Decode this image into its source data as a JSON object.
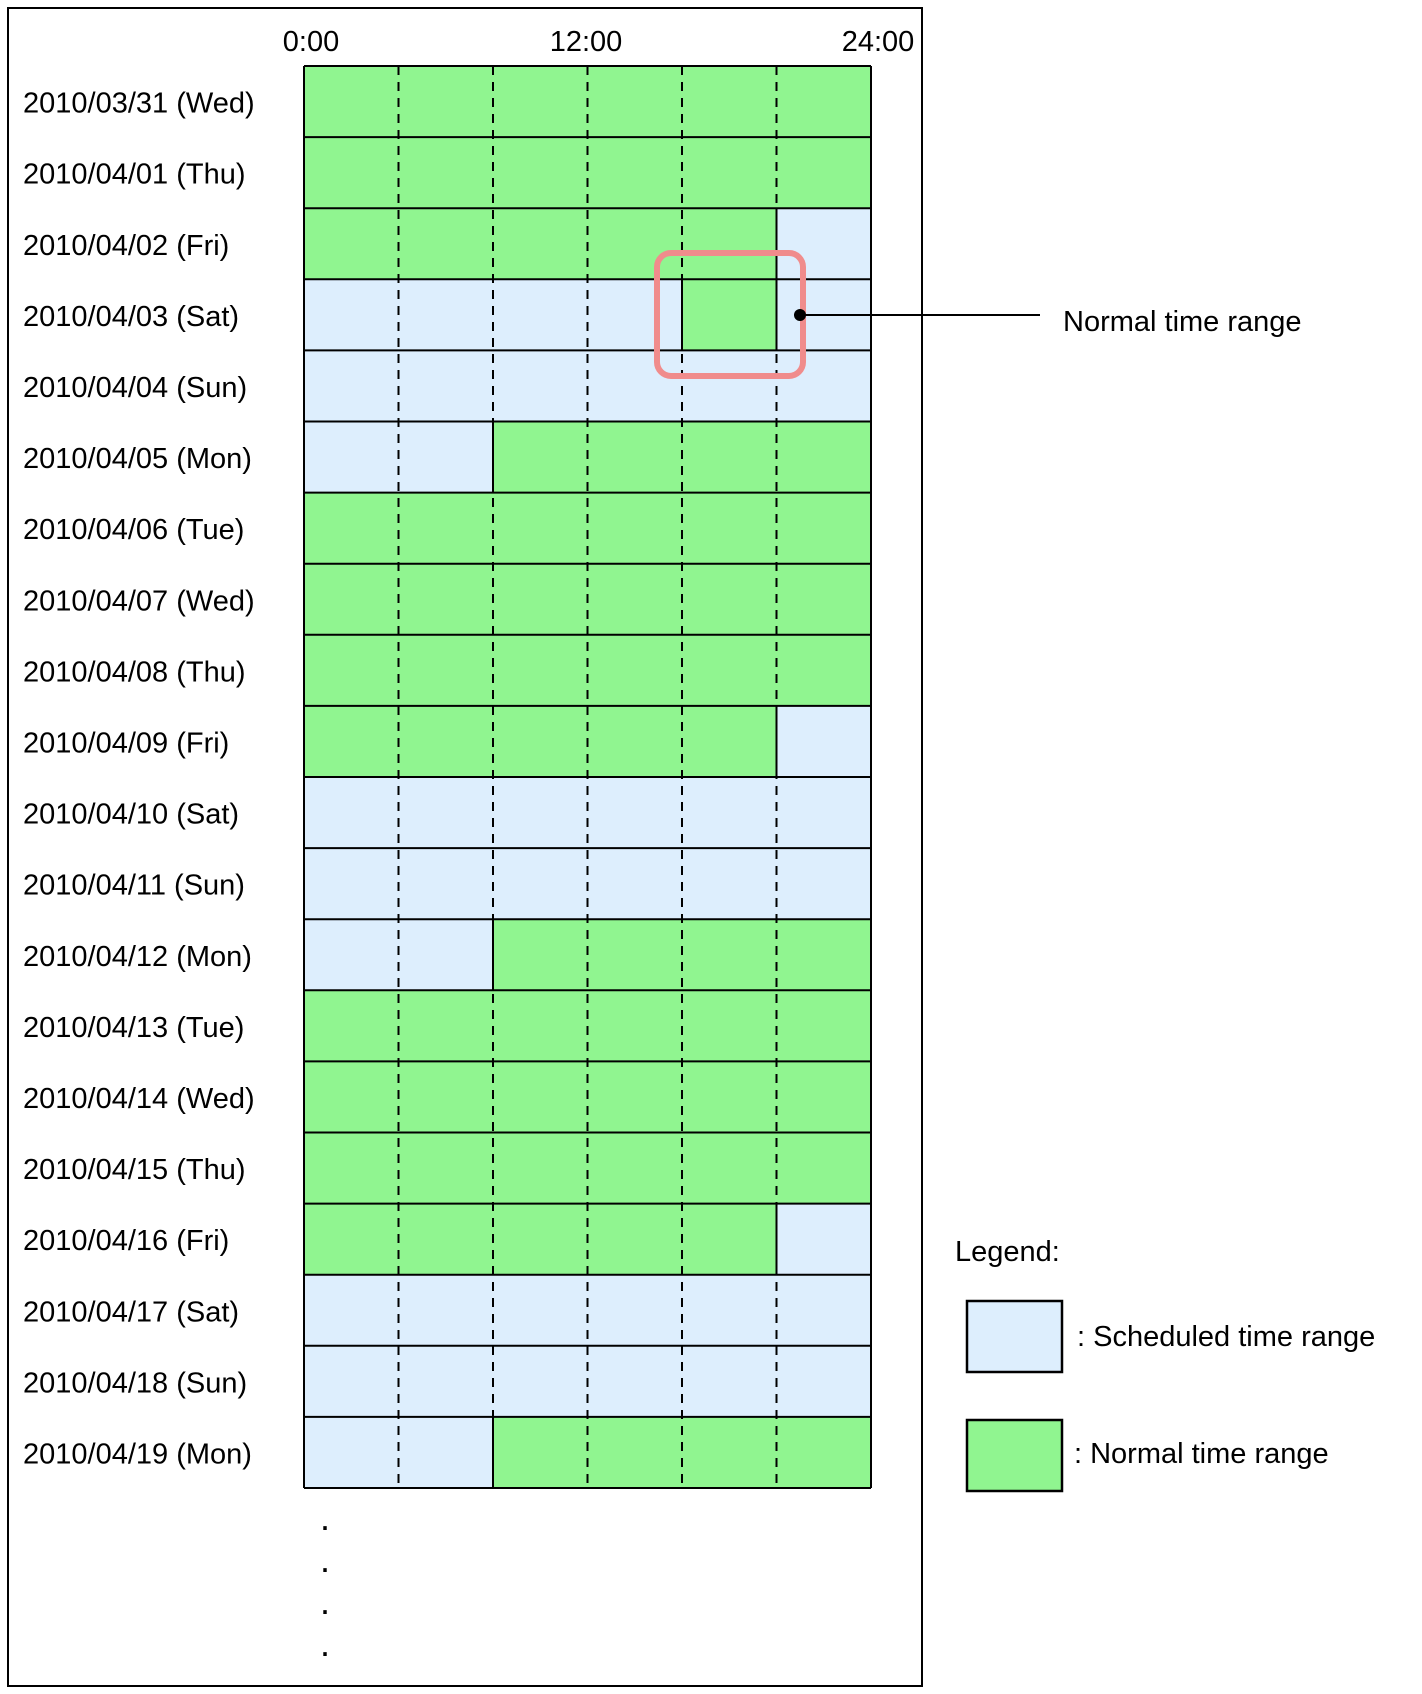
{
  "time_axis": {
    "labels": [
      "0:00",
      "12:00",
      "24:00"
    ],
    "hours": [
      0,
      12,
      24
    ]
  },
  "colors": {
    "normal": "#90F590",
    "scheduled": "#DDEEFD",
    "highlight": "#F08C8C",
    "outline": "#000000"
  },
  "rows": [
    {
      "label": "2010/03/31 (Wed)",
      "normal_hours": [
        [
          0,
          24
        ]
      ]
    },
    {
      "label": "2010/04/01 (Thu)",
      "normal_hours": [
        [
          0,
          24
        ]
      ]
    },
    {
      "label": "2010/04/02 (Fri)",
      "normal_hours": [
        [
          0,
          20
        ]
      ]
    },
    {
      "label": "2010/04/03 (Sat)",
      "normal_hours": [
        [
          16,
          20
        ]
      ]
    },
    {
      "label": "2010/04/04 (Sun)",
      "normal_hours": []
    },
    {
      "label": "2010/04/05 (Mon)",
      "normal_hours": [
        [
          8,
          24
        ]
      ]
    },
    {
      "label": "2010/04/06 (Tue)",
      "normal_hours": [
        [
          0,
          24
        ]
      ]
    },
    {
      "label": "2010/04/07 (Wed)",
      "normal_hours": [
        [
          0,
          24
        ]
      ]
    },
    {
      "label": "2010/04/08 (Thu)",
      "normal_hours": [
        [
          0,
          24
        ]
      ]
    },
    {
      "label": "2010/04/09 (Fri)",
      "normal_hours": [
        [
          0,
          20
        ]
      ]
    },
    {
      "label": "2010/04/10 (Sat)",
      "normal_hours": []
    },
    {
      "label": "2010/04/11 (Sun)",
      "normal_hours": []
    },
    {
      "label": "2010/04/12 (Mon)",
      "normal_hours": [
        [
          8,
          24
        ]
      ]
    },
    {
      "label": "2010/04/13 (Tue)",
      "normal_hours": [
        [
          0,
          24
        ]
      ]
    },
    {
      "label": "2010/04/14 (Wed)",
      "normal_hours": [
        [
          0,
          24
        ]
      ]
    },
    {
      "label": "2010/04/15 (Thu)",
      "normal_hours": [
        [
          0,
          24
        ]
      ]
    },
    {
      "label": "2010/04/16 (Fri)",
      "normal_hours": [
        [
          0,
          20
        ]
      ]
    },
    {
      "label": "2010/04/17 (Sat)",
      "normal_hours": []
    },
    {
      "label": "2010/04/18 (Sun)",
      "normal_hours": []
    },
    {
      "label": "2010/04/19 (Mon)",
      "normal_hours": [
        [
          8,
          24
        ]
      ]
    }
  ],
  "callout": {
    "label": "Normal time range",
    "row_index": 3,
    "hours": [
      16,
      20
    ]
  },
  "continuation": ".",
  "legend": {
    "title": "Legend:",
    "items": [
      {
        "key": "scheduled",
        "label": ": Scheduled time range"
      },
      {
        "key": "normal",
        "label": ": Normal time range"
      }
    ]
  }
}
